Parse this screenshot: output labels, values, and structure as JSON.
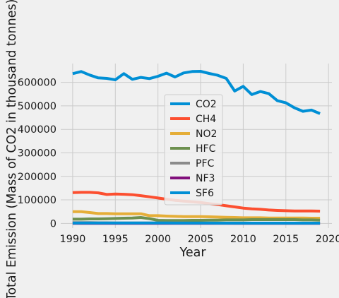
{
  "chart_data": {
    "type": "line",
    "xlabel": "Year",
    "ylabel": "Total Emission (Mass of CO2 in thousand tonnes)",
    "xlim": [
      1988.6,
      2020.4
    ],
    "ylim": [
      -20000,
      680000
    ],
    "x_ticks": [
      1990,
      1995,
      2000,
      2005,
      2010,
      2015,
      2020
    ],
    "y_ticks": [
      0,
      100000,
      200000,
      300000,
      400000,
      500000,
      600000
    ],
    "grid": true,
    "legend_position": "center",
    "x": [
      1990,
      1991,
      1992,
      1993,
      1994,
      1995,
      1996,
      1997,
      1998,
      1999,
      2000,
      2001,
      2002,
      2003,
      2004,
      2005,
      2006,
      2007,
      2008,
      2009,
      2010,
      2011,
      2012,
      2013,
      2014,
      2015,
      2016,
      2017,
      2018,
      2019
    ],
    "series": [
      {
        "name": "CO2",
        "color": "#008fd5",
        "values": [
          637000,
          646000,
          631000,
          619000,
          617000,
          611000,
          637000,
          613000,
          621000,
          616000,
          626000,
          639000,
          623000,
          640000,
          646000,
          647000,
          638000,
          630000,
          617000,
          563000,
          583000,
          548000,
          561000,
          552000,
          522000,
          513000,
          492000,
          477000,
          482000,
          467000
        ]
      },
      {
        "name": "CH4",
        "color": "#fc4f30",
        "values": [
          131000,
          132000,
          132000,
          130000,
          123000,
          125000,
          124000,
          122000,
          118000,
          113000,
          108000,
          103000,
          98000,
          95000,
          92000,
          89000,
          84000,
          80000,
          75000,
          70000,
          65000,
          62000,
          60000,
          57000,
          55000,
          54000,
          53000,
          53000,
          53000,
          52000
        ]
      },
      {
        "name": "NO2",
        "color": "#e5ae38",
        "values": [
          50000,
          50000,
          46000,
          42000,
          42000,
          41000,
          41000,
          41000,
          41000,
          33000,
          33000,
          31000,
          30000,
          29000,
          29000,
          29000,
          28000,
          27000,
          26000,
          25000,
          24000,
          24000,
          24000,
          23000,
          23000,
          23000,
          23000,
          23000,
          22000,
          22000
        ]
      },
      {
        "name": "HFC",
        "color": "#6d904f",
        "values": [
          18000,
          18000,
          19000,
          19000,
          20000,
          21000,
          22000,
          23000,
          25000,
          20000,
          13000,
          12000,
          12000,
          12000,
          13000,
          13000,
          14000,
          14000,
          15000,
          15000,
          15000,
          16000,
          16000,
          16000,
          16000,
          16000,
          16000,
          15000,
          15000,
          14000
        ]
      },
      {
        "name": "PFC",
        "color": "#8b8b8b",
        "values": [
          3000,
          3000,
          3000,
          2500,
          2500,
          2000,
          2000,
          2000,
          2000,
          1500,
          1500,
          1500,
          1500,
          1500,
          1000,
          1000,
          1000,
          1000,
          1000,
          800,
          800,
          800,
          800,
          800,
          700,
          700,
          700,
          700,
          700,
          600
        ]
      },
      {
        "name": "NF3",
        "color": "#810f7c",
        "values": [
          200,
          200,
          200,
          200,
          200,
          200,
          200,
          200,
          200,
          200,
          200,
          200,
          200,
          200,
          200,
          200,
          200,
          200,
          200,
          200,
          200,
          200,
          200,
          200,
          200,
          200,
          200,
          200,
          200,
          200
        ]
      },
      {
        "name": "SF6",
        "color": "#008fd5",
        "values": [
          1400,
          1500,
          1500,
          1500,
          1500,
          1600,
          1700,
          1700,
          1700,
          1700,
          1600,
          1500,
          1400,
          1300,
          1300,
          1200,
          1200,
          1100,
          1100,
          1000,
          1000,
          1000,
          1000,
          1000,
          900,
          900,
          900,
          900,
          900,
          900
        ]
      }
    ]
  }
}
